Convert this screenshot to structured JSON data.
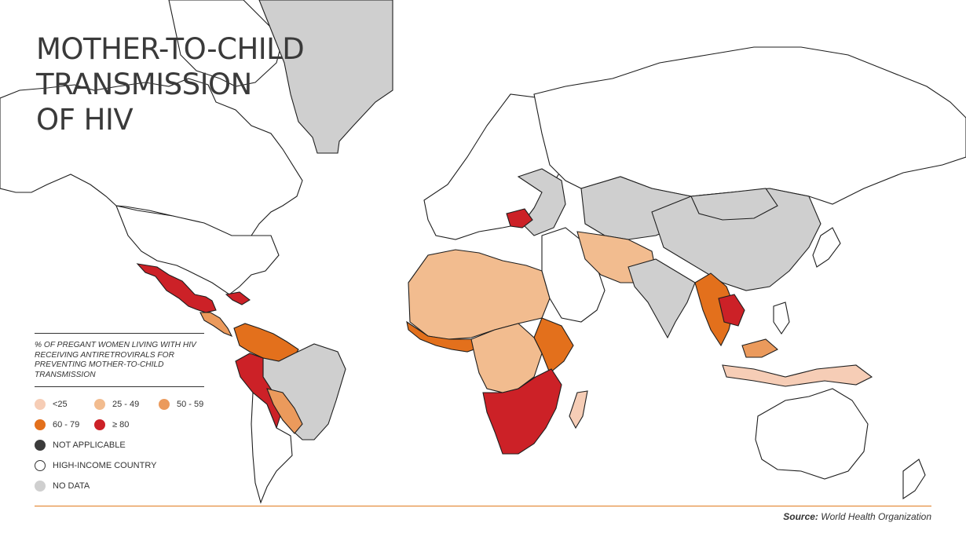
{
  "title": {
    "line1": "MOTHER-TO-CHILD",
    "line2": "TRANSMISSION",
    "line3": "OF HIV"
  },
  "legend": {
    "heading": "% OF PREGANT WOMEN LIVING WITH HIV RECEIVING ANTIRETROVIRALS FOR PREVENTING MOTHER-TO-CHILD TRANSMISSION",
    "items": [
      {
        "label": "<25",
        "color": "#f6cdb6"
      },
      {
        "label": "25 - 49",
        "color": "#f2bc8f"
      },
      {
        "label": "50 - 59",
        "color": "#eb9a5c"
      },
      {
        "label": "60 - 79",
        "color": "#e3701c"
      },
      {
        "label": "≥ 80",
        "color": "#cc2127"
      },
      {
        "label": "NOT APPLICABLE",
        "color": "#3b3b3b"
      },
      {
        "label": "HIGH-INCOME COUNTRY",
        "color": "#ffffff"
      },
      {
        "label": "NO DATA",
        "color": "#cfcfcf"
      }
    ]
  },
  "colors": {
    "lt25": "#f6cdb6",
    "c25_49": "#f2bc8f",
    "c50_59": "#eb9a5c",
    "c60_79": "#e3701c",
    "ge80": "#cc2127",
    "high_income": "#ffffff",
    "no_data": "#cfcfcf",
    "accent_rule": "#e07a1f"
  },
  "source": {
    "label": "Source:",
    "text": "World Health Organization"
  }
}
